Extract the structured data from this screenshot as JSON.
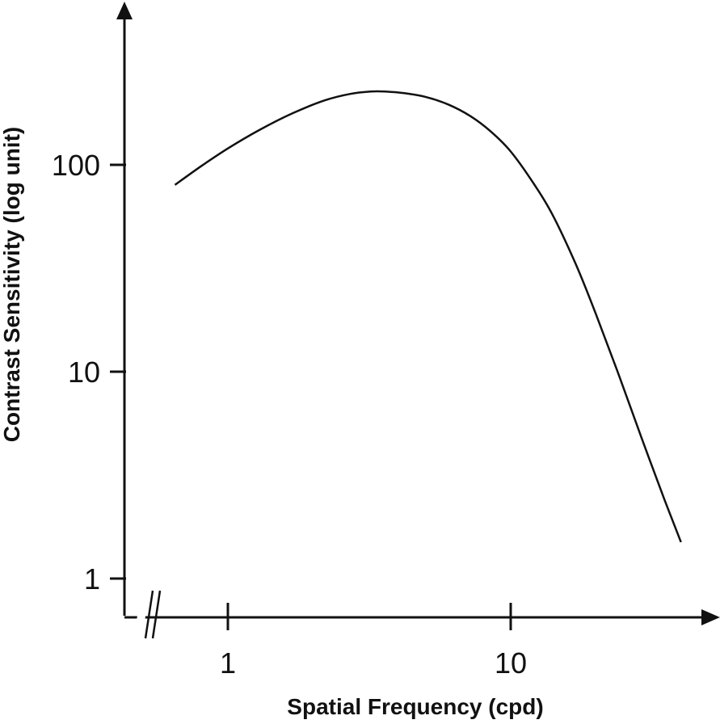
{
  "chart_data": {
    "type": "line",
    "title": "",
    "xlabel": "Spatial Frequency (cpd)",
    "ylabel": "Contrast Sensitivity (log unit)",
    "x_scale": "log",
    "y_scale": "log",
    "x_ticks": [
      1,
      10
    ],
    "x_tick_labels": [
      "1",
      "10"
    ],
    "y_ticks": [
      1,
      10,
      100
    ],
    "y_tick_labels": [
      "1",
      "10",
      "100"
    ],
    "x_axis_break": true,
    "grid": false,
    "legend": "none",
    "series": [
      {
        "x": [
          0.65,
          0.8,
          1.0,
          1.3,
          1.7,
          2.2,
          2.7,
          3.2,
          3.6,
          4.2,
          5.0,
          6.0,
          7.2,
          8.5,
          10.0,
          12.0,
          14.0,
          17.0,
          20.0,
          24.0,
          29.0,
          35.0,
          40.0
        ],
        "y": [
          80,
          98,
          120,
          148,
          178,
          205,
          220,
          226,
          226,
          222,
          213,
          196,
          172,
          145,
          116,
          82,
          58,
          33,
          19,
          9.8,
          4.8,
          2.4,
          1.5
        ]
      }
    ]
  }
}
